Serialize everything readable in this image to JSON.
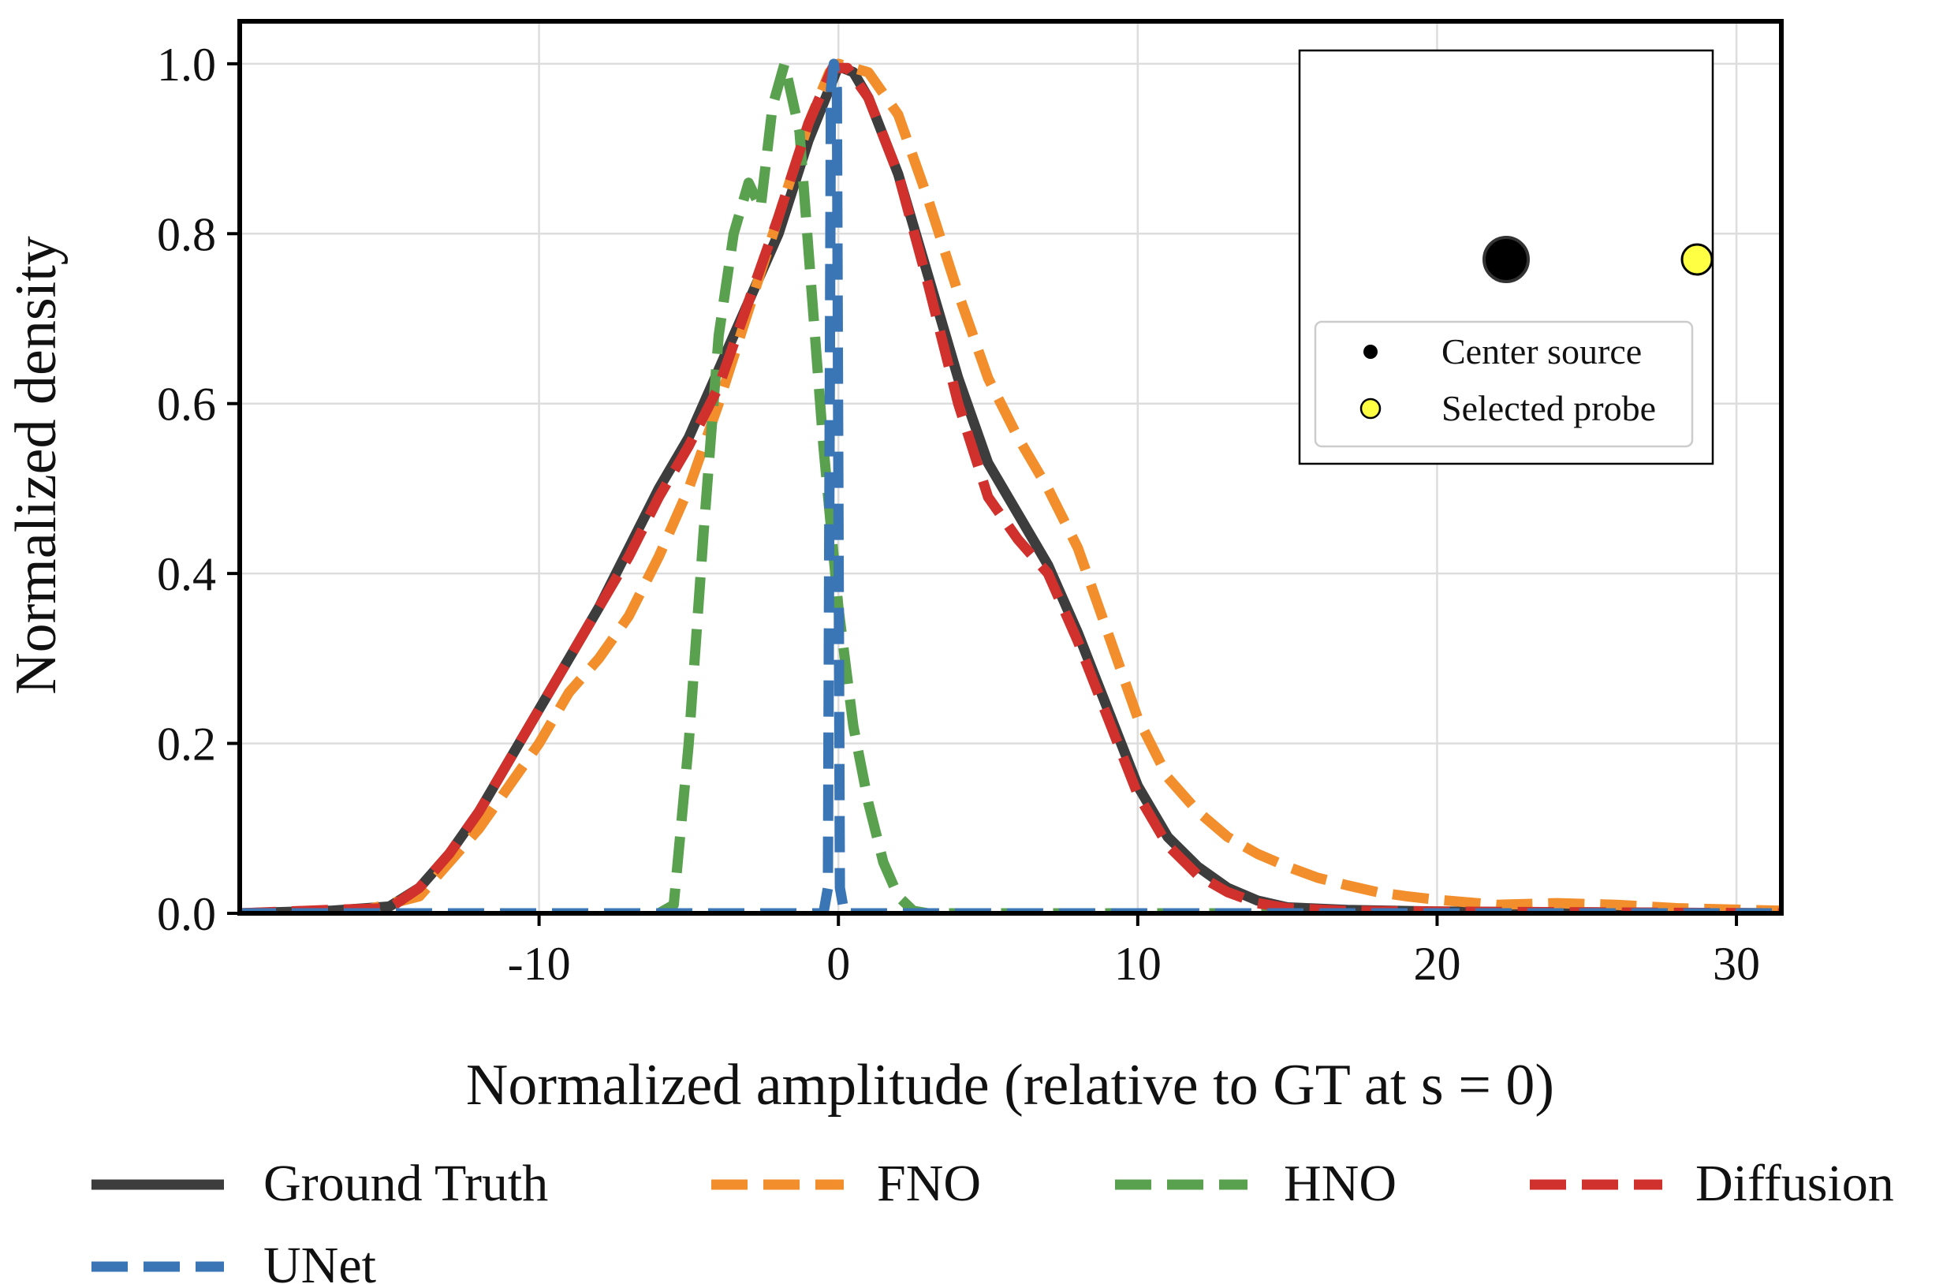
{
  "chart_data": {
    "type": "line",
    "title": "",
    "xlabel": "Normalized amplitude (relative to GT at s = 0)",
    "ylabel": "Normalized density",
    "xlim": [
      -20,
      31.5
    ],
    "ylim": [
      0,
      1.05
    ],
    "xticks": [
      -10,
      0,
      10,
      20,
      30
    ],
    "xtick_labels": [
      "-10",
      "0",
      "10",
      "20",
      "30"
    ],
    "yticks": [
      0.0,
      0.2,
      0.4,
      0.6,
      0.8,
      1.0
    ],
    "ytick_labels": [
      "0.0",
      "0.2",
      "0.4",
      "0.6",
      "0.8",
      "1.0"
    ],
    "grid": true,
    "legend_position": "bottom",
    "series": [
      {
        "name": "Ground Truth",
        "color": "#3d3d3d",
        "style": "solid",
        "points": [
          [
            -20,
            0.0
          ],
          [
            -17,
            0.003
          ],
          [
            -15,
            0.008
          ],
          [
            -14,
            0.03
          ],
          [
            -13,
            0.07
          ],
          [
            -12,
            0.12
          ],
          [
            -11,
            0.18
          ],
          [
            -10,
            0.24
          ],
          [
            -9,
            0.3
          ],
          [
            -8,
            0.36
          ],
          [
            -7,
            0.43
          ],
          [
            -6,
            0.5
          ],
          [
            -5,
            0.56
          ],
          [
            -4,
            0.64
          ],
          [
            -3,
            0.72
          ],
          [
            -2,
            0.8
          ],
          [
            -1,
            0.91
          ],
          [
            0,
            0.997
          ],
          [
            0.5,
            0.99
          ],
          [
            1,
            0.96
          ],
          [
            2,
            0.87
          ],
          [
            3,
            0.75
          ],
          [
            4,
            0.63
          ],
          [
            5,
            0.53
          ],
          [
            6,
            0.47
          ],
          [
            7,
            0.41
          ],
          [
            8,
            0.33
          ],
          [
            9,
            0.24
          ],
          [
            10,
            0.15
          ],
          [
            11,
            0.09
          ],
          [
            12,
            0.055
          ],
          [
            13,
            0.03
          ],
          [
            14,
            0.015
          ],
          [
            15,
            0.007
          ],
          [
            17,
            0.004
          ],
          [
            20,
            0.002
          ],
          [
            31.5,
            0.0
          ]
        ]
      },
      {
        "name": "FNO",
        "color": "#f28e2b",
        "style": "dashed",
        "points": [
          [
            -20,
            0.0
          ],
          [
            -16,
            0.002
          ],
          [
            -14,
            0.02
          ],
          [
            -13,
            0.06
          ],
          [
            -12,
            0.1
          ],
          [
            -11,
            0.15
          ],
          [
            -10,
            0.2
          ],
          [
            -9,
            0.26
          ],
          [
            -8,
            0.3
          ],
          [
            -7,
            0.35
          ],
          [
            -6,
            0.42
          ],
          [
            -5,
            0.5
          ],
          [
            -4,
            0.6
          ],
          [
            -3,
            0.71
          ],
          [
            -2,
            0.82
          ],
          [
            -1,
            0.93
          ],
          [
            -0.3,
            0.99
          ],
          [
            0,
            1.0
          ],
          [
            1,
            0.99
          ],
          [
            2,
            0.94
          ],
          [
            3,
            0.84
          ],
          [
            4,
            0.73
          ],
          [
            5,
            0.63
          ],
          [
            6,
            0.56
          ],
          [
            7,
            0.5
          ],
          [
            8,
            0.43
          ],
          [
            9,
            0.33
          ],
          [
            10,
            0.23
          ],
          [
            11,
            0.16
          ],
          [
            12,
            0.12
          ],
          [
            13,
            0.09
          ],
          [
            14,
            0.07
          ],
          [
            15,
            0.055
          ],
          [
            16,
            0.042
          ],
          [
            17,
            0.033
          ],
          [
            18,
            0.025
          ],
          [
            19,
            0.02
          ],
          [
            20,
            0.016
          ],
          [
            22,
            0.01
          ],
          [
            24,
            0.012
          ],
          [
            26,
            0.01
          ],
          [
            28,
            0.006
          ],
          [
            31.5,
            0.003
          ]
        ]
      },
      {
        "name": "HNO",
        "color": "#59a14f",
        "style": "dashed",
        "points": [
          [
            -20,
            0.0
          ],
          [
            -6,
            0.0
          ],
          [
            -5.5,
            0.01
          ],
          [
            -5,
            0.2
          ],
          [
            -4.5,
            0.45
          ],
          [
            -4,
            0.68
          ],
          [
            -3.5,
            0.8
          ],
          [
            -3,
            0.86
          ],
          [
            -2.6,
            0.83
          ],
          [
            -2.2,
            0.95
          ],
          [
            -1.8,
            1.0
          ],
          [
            -1.3,
            0.92
          ],
          [
            -1,
            0.78
          ],
          [
            -0.5,
            0.55
          ],
          [
            0,
            0.36
          ],
          [
            0.5,
            0.22
          ],
          [
            1,
            0.13
          ],
          [
            1.5,
            0.06
          ],
          [
            2,
            0.02
          ],
          [
            2.5,
            0.003
          ],
          [
            3,
            0.0
          ],
          [
            31.5,
            0.0
          ]
        ]
      },
      {
        "name": "Diffusion",
        "color": "#d0312d",
        "style": "dashed",
        "points": [
          [
            -20,
            0.0
          ],
          [
            -17,
            0.004
          ],
          [
            -15,
            0.006
          ],
          [
            -14,
            0.03
          ],
          [
            -13,
            0.07
          ],
          [
            -12,
            0.12
          ],
          [
            -11,
            0.18
          ],
          [
            -10,
            0.24
          ],
          [
            -9,
            0.3
          ],
          [
            -8,
            0.36
          ],
          [
            -7,
            0.42
          ],
          [
            -6,
            0.49
          ],
          [
            -5,
            0.55
          ],
          [
            -4,
            0.62
          ],
          [
            -3,
            0.72
          ],
          [
            -2,
            0.82
          ],
          [
            -1,
            0.93
          ],
          [
            -0.2,
            0.995
          ],
          [
            0.3,
            0.995
          ],
          [
            1,
            0.96
          ],
          [
            2,
            0.87
          ],
          [
            3,
            0.74
          ],
          [
            4,
            0.6
          ],
          [
            5,
            0.49
          ],
          [
            6,
            0.44
          ],
          [
            7,
            0.4
          ],
          [
            8,
            0.32
          ],
          [
            9,
            0.23
          ],
          [
            10,
            0.14
          ],
          [
            11,
            0.08
          ],
          [
            12,
            0.045
          ],
          [
            13,
            0.025
          ],
          [
            14,
            0.012
          ],
          [
            15,
            0.006
          ],
          [
            17,
            0.003
          ],
          [
            20,
            0.002
          ],
          [
            31.5,
            0.0
          ]
        ]
      },
      {
        "name": "UNet",
        "color": "#3a75b5",
        "style": "dashed",
        "points": [
          [
            -20,
            0.0
          ],
          [
            -5,
            0.0
          ],
          [
            -0.5,
            0.0
          ],
          [
            -0.35,
            0.03
          ],
          [
            -0.25,
            0.97
          ],
          [
            -0.15,
            1.0
          ],
          [
            -0.05,
            0.97
          ],
          [
            0.05,
            0.03
          ],
          [
            0.2,
            0.0
          ],
          [
            31.5,
            0.0
          ]
        ]
      }
    ],
    "inset": {
      "legend": [
        {
          "label": "Center source",
          "color": "#000000"
        },
        {
          "label": "Selected probe",
          "color": "#ffff44"
        }
      ]
    }
  }
}
